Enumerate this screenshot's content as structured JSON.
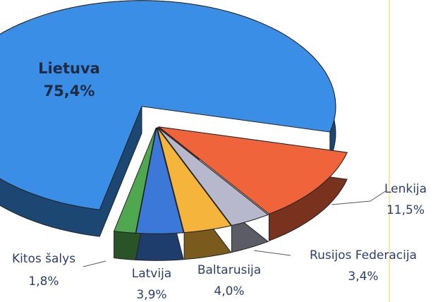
{
  "chart_data": {
    "type": "pie3d",
    "categories": [
      "Lietuva",
      "Lenkija",
      "Rusijos Federacija",
      "Baltarusija",
      "Latvija",
      "Kitos šalys"
    ],
    "values": [
      75.4,
      11.5,
      3.4,
      4.0,
      3.9,
      1.8
    ],
    "value_labels": [
      "75,4%",
      "11,5%",
      "3,4%",
      "4,0%",
      "3,9%",
      "1,8%"
    ],
    "colors": [
      "#3a8ee6",
      "#f0643c",
      "#b8b8cc",
      "#f5b43c",
      "#3c78d8",
      "#4fa84f"
    ]
  }
}
